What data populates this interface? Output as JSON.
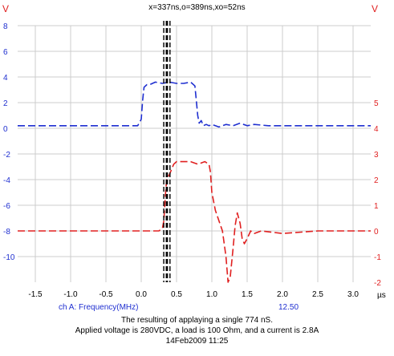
{
  "header": {
    "readout": "x=337ns,o=389ns,xo=52ns",
    "left_unit": "V",
    "right_unit": "V",
    "x_unit": "µs"
  },
  "footer": {
    "channel_label": "ch A: Frequency(MHz)",
    "channel_value": "12.50",
    "caption_lines": [
      "The resulting of applaying a single 774 nS.",
      "Applied voltage is 280VDC, a load is 100 Ohm, and a current is 2.8A",
      "14Feb2009  11:25"
    ]
  },
  "colors": {
    "blue": "#1f2fd0",
    "red": "#e02020",
    "grid": "#cccccc",
    "cursor": "#000000"
  },
  "chart_data": {
    "type": "line",
    "xlim": [
      -1.75,
      3.25
    ],
    "x_ticks": [
      "-1.5",
      "-1.0",
      "-0.5",
      "0.0",
      "0.5",
      "1.0",
      "1.5",
      "2.0",
      "2.5",
      "3.0"
    ],
    "left_axis": {
      "ylim": [
        -12,
        8
      ],
      "ticks": [
        "8",
        "6",
        "4",
        "2",
        "0",
        "-2",
        "-4",
        "-6",
        "-8",
        "-10"
      ]
    },
    "right_axis": {
      "ylim": [
        -2,
        8
      ],
      "ticks": [
        "5",
        "4",
        "3",
        "2",
        "1",
        "0",
        "-1",
        "-2"
      ]
    },
    "cursors": [
      0.337,
      0.389
    ],
    "series": [
      {
        "axis": "left",
        "color": "blue",
        "x": [
          -1.75,
          -0.05,
          0.0,
          0.02,
          0.04,
          0.08,
          0.12,
          0.2,
          0.3,
          0.4,
          0.5,
          0.6,
          0.7,
          0.72,
          0.76,
          0.78,
          0.8,
          0.82,
          0.85,
          0.88,
          0.92,
          0.96,
          1.0,
          1.05,
          1.1,
          1.2,
          1.3,
          1.4,
          1.5,
          1.6,
          1.8,
          2.0,
          2.5,
          3.25
        ],
        "y": [
          0.2,
          0.2,
          0.7,
          2.2,
          3.2,
          3.4,
          3.4,
          3.6,
          3.5,
          3.6,
          3.5,
          3.5,
          3.6,
          3.5,
          3.3,
          2.2,
          1.0,
          0.4,
          0.6,
          0.2,
          0.3,
          0.2,
          0.3,
          0.2,
          0.1,
          0.3,
          0.2,
          0.4,
          0.2,
          0.3,
          0.2,
          0.2,
          0.2,
          0.2
        ]
      },
      {
        "axis": "right",
        "color": "red",
        "x": [
          -1.75,
          0.25,
          0.3,
          0.32,
          0.34,
          0.36,
          0.38,
          0.4,
          0.43,
          0.46,
          0.5,
          0.6,
          0.7,
          0.8,
          0.9,
          0.96,
          0.98,
          1.0,
          1.05,
          1.1,
          1.15,
          1.2,
          1.23,
          1.26,
          1.3,
          1.33,
          1.36,
          1.4,
          1.43,
          1.46,
          1.5,
          1.55,
          1.6,
          1.7,
          2.0,
          2.5,
          3.25
        ],
        "y": [
          0.0,
          0.0,
          0.1,
          0.4,
          1.3,
          2.0,
          2.1,
          2.2,
          2.4,
          2.6,
          2.7,
          2.7,
          2.7,
          2.6,
          2.7,
          2.6,
          2.3,
          1.5,
          0.8,
          0.4,
          0.0,
          -1.0,
          -2.0,
          -1.8,
          -0.7,
          0.2,
          0.7,
          0.3,
          -0.3,
          -0.5,
          -0.3,
          0.0,
          -0.1,
          0.0,
          -0.1,
          0.0,
          0.0
        ]
      }
    ]
  }
}
